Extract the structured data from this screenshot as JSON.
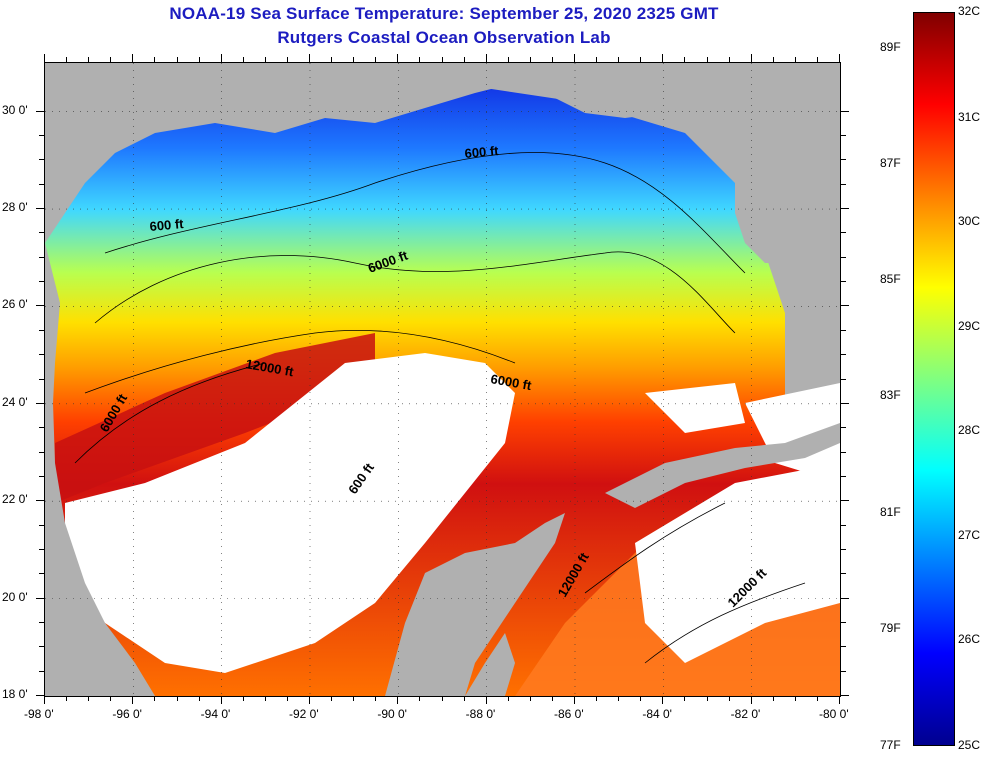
{
  "title": {
    "line1": "NOAA-19 Sea Surface Temperature:  September 25, 2020 2325 GMT",
    "line2": "Rutgers Coastal Ocean Observation Lab"
  },
  "map": {
    "lon_ticks": [
      "-98 0'",
      "-96 0'",
      "-94 0'",
      "-92 0'",
      "-90 0'",
      "-88 0'",
      "-86 0'",
      "-84 0'",
      "-82 0'",
      "-80 0'"
    ],
    "lat_ticks": [
      "30 0'",
      "28 0'",
      "26 0'",
      "24 0'",
      "22 0'",
      "20 0'",
      "18 0'"
    ],
    "lon_range": [
      -98,
      -80
    ],
    "lat_range": [
      18,
      31
    ],
    "land_color": "#b0b0b0",
    "cloud_color": "#ffffff",
    "contour_labels": [
      {
        "text": "600 ft"
      },
      {
        "text": "600 ft"
      },
      {
        "text": "6000 ft"
      },
      {
        "text": "12000 ft"
      },
      {
        "text": "6000 ft"
      },
      {
        "text": "6000 ft"
      },
      {
        "text": "600 ft"
      },
      {
        "text": "12000 ft"
      },
      {
        "text": "12000 ft"
      }
    ]
  },
  "colorbar": {
    "celsius_labels": [
      "32C",
      "31C",
      "30C",
      "29C",
      "28C",
      "27C",
      "26C",
      "25C"
    ],
    "fahrenheit_labels": [
      "89F",
      "87F",
      "85F",
      "83F",
      "81F",
      "79F",
      "77F"
    ],
    "range_c": [
      25,
      32
    ],
    "colors": [
      "#00008f",
      "#0000ff",
      "#0080ff",
      "#00ffff",
      "#80ff80",
      "#ffff00",
      "#ff8000",
      "#ff0000",
      "#800000"
    ]
  }
}
